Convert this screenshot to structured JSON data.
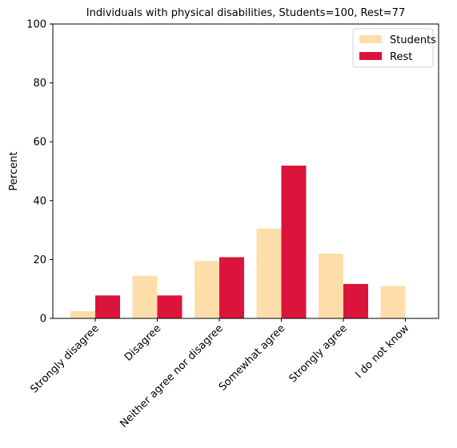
{
  "chart_data": {
    "type": "bar",
    "title": "Individuals with physical disabilities, Students=100, Rest=77",
    "xlabel": "",
    "ylabel": "Percent",
    "ylim": [
      0,
      100
    ],
    "yticks": [
      0,
      20,
      40,
      60,
      80,
      100
    ],
    "grid": false,
    "legend_position": "top-right",
    "categories": [
      "Strongly disagree",
      "Disagree",
      "Neither agree nor disagree",
      "Somewhat agree",
      "Strongly agree",
      "I do not know"
    ],
    "series": [
      {
        "name": "Students",
        "color": "#fddeab",
        "values": [
          2.5,
          14.5,
          19.5,
          30.5,
          22.0,
          11.0
        ]
      },
      {
        "name": "Rest",
        "color": "#dc143c",
        "values": [
          7.8,
          7.8,
          20.8,
          51.9,
          11.7,
          0.0
        ]
      }
    ]
  }
}
